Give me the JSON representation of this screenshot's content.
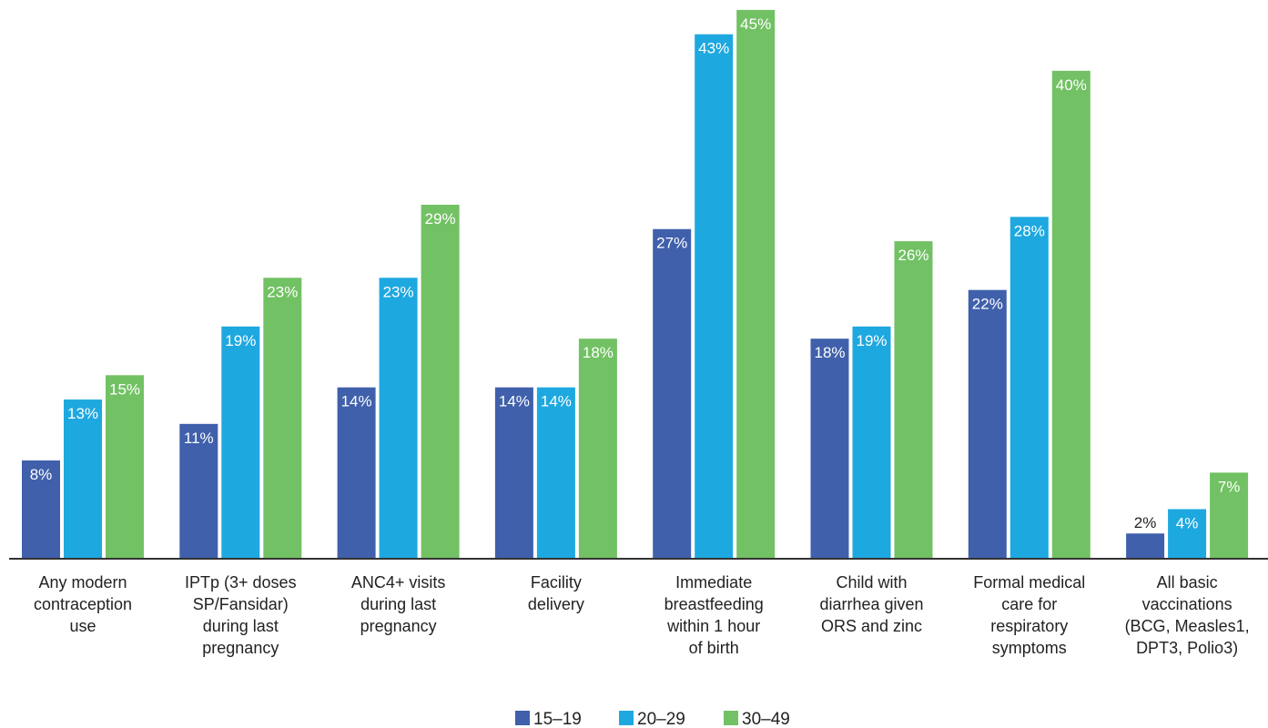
{
  "chart_data": {
    "type": "bar",
    "title": "",
    "xlabel": "",
    "ylabel": "",
    "ylim": [
      0,
      45
    ],
    "grid": false,
    "legend_position": "bottom",
    "categories": [
      [
        "Any modern",
        "contraception",
        "use"
      ],
      [
        "IPTp (3+ doses",
        "SP/Fansidar)",
        "during last",
        "pregnancy"
      ],
      [
        "ANC4+ visits",
        "during last",
        "pregnancy"
      ],
      [
        "Facility",
        "delivery"
      ],
      [
        "Immediate",
        "breastfeeding",
        "within 1 hour",
        "of birth"
      ],
      [
        "Child with",
        "diarrhea given",
        "ORS and zinc"
      ],
      [
        "Formal medical",
        "care for",
        "respiratory",
        "symptoms"
      ],
      [
        "All basic",
        "vaccinations",
        "(BCG, Measles1,",
        "DPT3, Polio3)"
      ]
    ],
    "series": [
      {
        "name": "15–19",
        "color": "#4060ab",
        "values": [
          8,
          11,
          14,
          14,
          27,
          18,
          22,
          2
        ]
      },
      {
        "name": "20–29",
        "color": "#1ea8e0",
        "values": [
          13,
          19,
          23,
          14,
          43,
          19,
          28,
          4
        ]
      },
      {
        "name": "30–49",
        "color": "#72c164",
        "values": [
          15,
          23,
          29,
          18,
          45,
          26,
          40,
          7
        ]
      }
    ],
    "value_suffix": "%"
  }
}
